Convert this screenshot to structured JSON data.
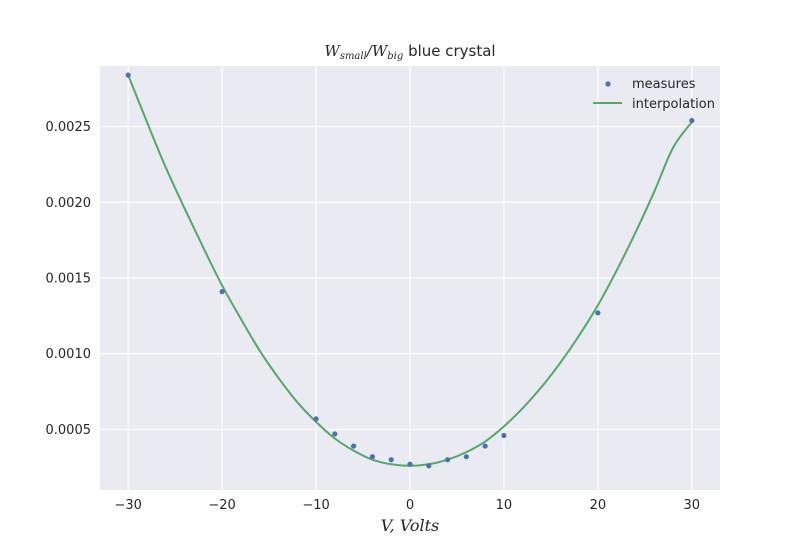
{
  "chart_data": {
    "type": "scatter",
    "title": {
      "w_small": "W",
      "small_sub": "small",
      "slash": "/",
      "w_big": "W",
      "big_sub": "big",
      "rest": " blue crystal"
    },
    "xlabel": "V, Volts",
    "ylabel": "",
    "xlim": [
      -33,
      33
    ],
    "ylim": [
      0.0001,
      0.0029
    ],
    "x_ticks": [
      -30,
      -20,
      -10,
      0,
      10,
      20,
      30
    ],
    "x_tick_labels": [
      "−30",
      "−20",
      "−10",
      "0",
      "10",
      "20",
      "30"
    ],
    "y_ticks": [
      0.0005,
      0.001,
      0.0015,
      0.002,
      0.0025
    ],
    "y_tick_labels": [
      "0.0005",
      "0.0010",
      "0.0015",
      "0.0020",
      "0.0025"
    ],
    "grid": true,
    "legend_position": "top-right",
    "series": [
      {
        "name": "measures",
        "kind": "points",
        "color": "#4c72b0",
        "x": [
          -30,
          -20,
          -10,
          -8,
          -6,
          -4,
          -2,
          0,
          2,
          4,
          6,
          8,
          10,
          20,
          30
        ],
        "y": [
          0.00284,
          0.00141,
          0.00057,
          0.00047,
          0.00039,
          0.00032,
          0.0003,
          0.00027,
          0.00026,
          0.0003,
          0.00032,
          0.00039,
          0.00046,
          0.00127,
          0.00254
        ]
      },
      {
        "name": "interpolation",
        "kind": "line",
        "color": "#55a868",
        "x": [
          -30,
          -28,
          -26,
          -24,
          -22,
          -20,
          -18,
          -16,
          -14,
          -12,
          -10,
          -8,
          -6,
          -4,
          -2,
          0,
          2,
          4,
          6,
          8,
          10,
          12,
          14,
          16,
          18,
          20,
          22,
          24,
          26,
          28,
          30
        ],
        "y": [
          0.00284,
          0.00253,
          0.00223,
          0.00196,
          0.0017,
          0.00145,
          0.00123,
          0.00102,
          0.00084,
          0.00068,
          0.00055,
          0.00044,
          0.00036,
          0.0003,
          0.00027,
          0.00026,
          0.00027,
          0.0003,
          0.00035,
          0.00042,
          0.00052,
          0.00064,
          0.00078,
          0.00094,
          0.00112,
          0.00132,
          0.00155,
          0.0018,
          0.00207,
          0.00236,
          0.00253
        ]
      }
    ]
  }
}
